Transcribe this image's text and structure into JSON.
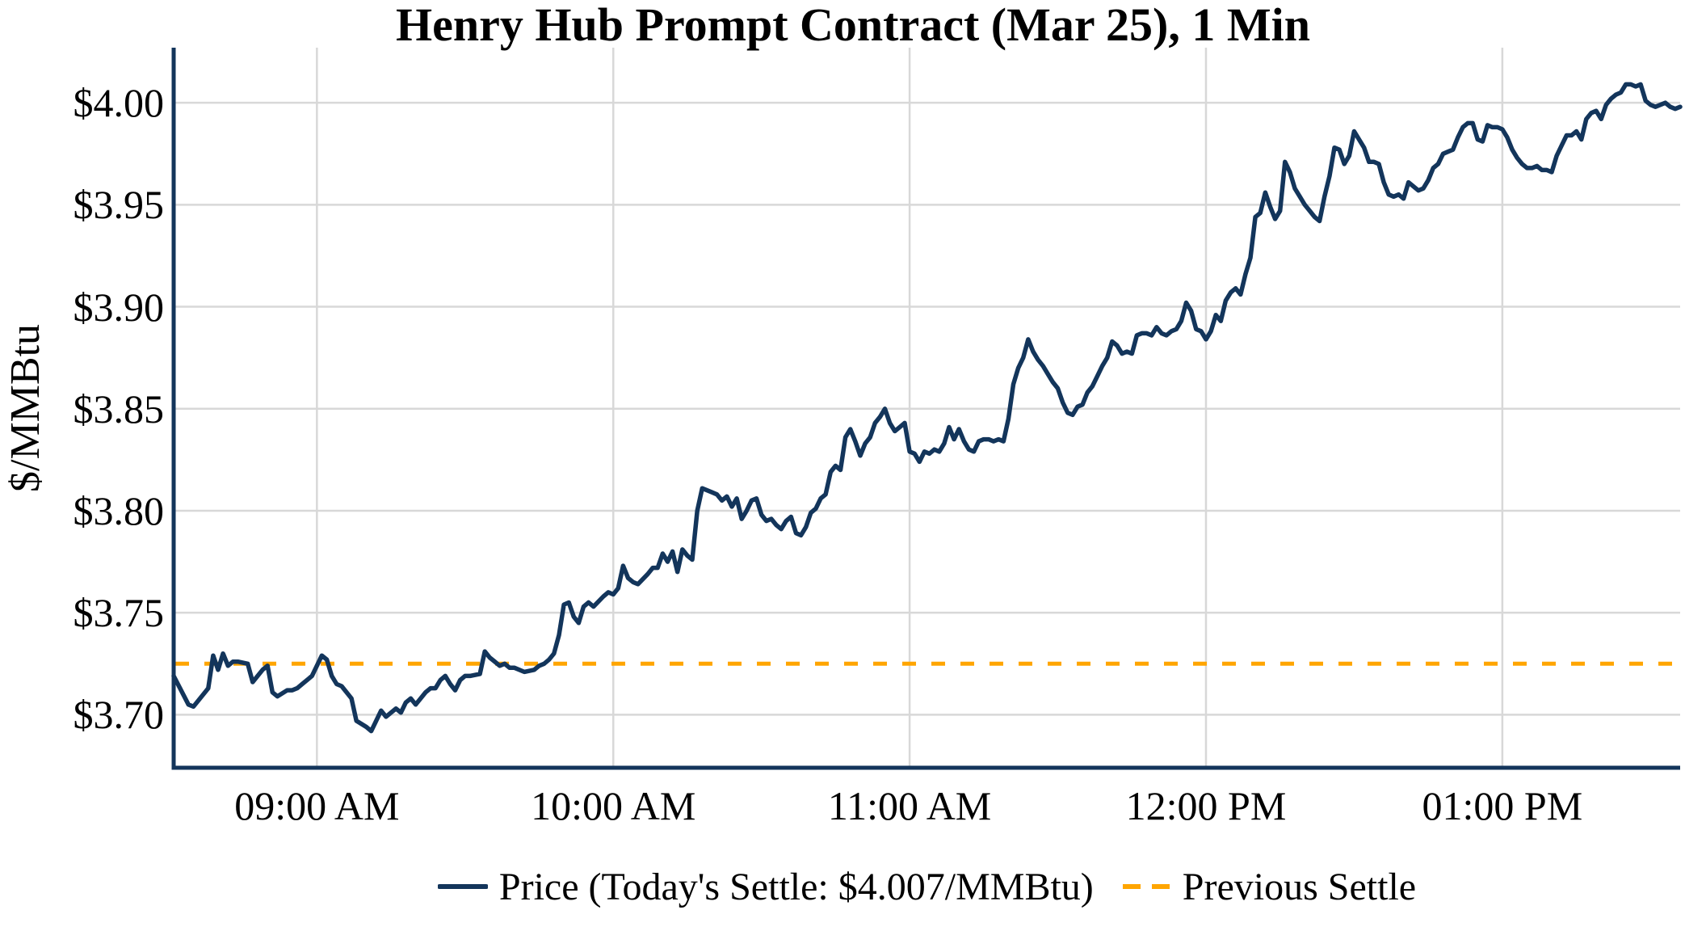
{
  "title": "Henry Hub Prompt Contract (Mar 25), 1 Min",
  "y_axis": {
    "label": "$/MMBtu",
    "ticks": [
      {
        "label": "$4.00",
        "value": 4.0
      },
      {
        "label": "$3.95",
        "value": 3.95
      },
      {
        "label": "$3.90",
        "value": 3.9
      },
      {
        "label": "$3.85",
        "value": 3.85
      },
      {
        "label": "$3.80",
        "value": 3.8
      },
      {
        "label": "$3.75",
        "value": 3.75
      },
      {
        "label": "$3.70",
        "value": 3.7
      }
    ]
  },
  "x_axis": {
    "ticks": [
      {
        "label": "09:00 AM",
        "minutes": 540
      },
      {
        "label": "10:00 AM",
        "minutes": 600
      },
      {
        "label": "11:00 AM",
        "minutes": 660
      },
      {
        "label": "12:00 PM",
        "minutes": 720
      },
      {
        "label": "01:00 PM",
        "minutes": 780
      }
    ]
  },
  "legend": {
    "price_label": "Price (Today's Settle: $4.007/MMBtu)",
    "settle_label": "Previous Settle"
  },
  "colors": {
    "price_line": "#13355B",
    "previous_settle": "#FFA500",
    "gridline": "#D8D8D8",
    "axis": "#13355B",
    "text": "#000000"
  },
  "chart_data": {
    "type": "line",
    "title": "Henry Hub Prompt Contract (Mar 25), 1 Min",
    "xlabel": "",
    "ylabel": "$/MMBtu",
    "x_unit": "minutes_since_midnight",
    "xlim": [
      511,
      816
    ],
    "ylim": [
      3.674,
      4.027
    ],
    "grid": true,
    "legend_position": "bottom",
    "today_settle": 4.007,
    "previous_settle": 3.725,
    "series": [
      {
        "name": "Price (Today's Settle: $4.007/MMBtu)",
        "type": "line",
        "style": "solid",
        "color": "#13355B",
        "points": [
          [
            511,
            3.719
          ],
          [
            514,
            3.705
          ],
          [
            515,
            3.704
          ],
          [
            518,
            3.713
          ],
          [
            519,
            3.729
          ],
          [
            520,
            3.722
          ],
          [
            521,
            3.73
          ],
          [
            522,
            3.724
          ],
          [
            523,
            3.726
          ],
          [
            524,
            3.726
          ],
          [
            526,
            3.725
          ],
          [
            527,
            3.716
          ],
          [
            529,
            3.722
          ],
          [
            530,
            3.724
          ],
          [
            531,
            3.711
          ],
          [
            532,
            3.709
          ],
          [
            534,
            3.712
          ],
          [
            535,
            3.712
          ],
          [
            536,
            3.713
          ],
          [
            537,
            3.715
          ],
          [
            538,
            3.717
          ],
          [
            539,
            3.719
          ],
          [
            541,
            3.729
          ],
          [
            542,
            3.727
          ],
          [
            543,
            3.719
          ],
          [
            544,
            3.715
          ],
          [
            545,
            3.714
          ],
          [
            547,
            3.708
          ],
          [
            548,
            3.697
          ],
          [
            550,
            3.694
          ],
          [
            551,
            3.692
          ],
          [
            552,
            3.697
          ],
          [
            553,
            3.702
          ],
          [
            554,
            3.699
          ],
          [
            556,
            3.703
          ],
          [
            557,
            3.701
          ],
          [
            558,
            3.706
          ],
          [
            559,
            3.708
          ],
          [
            560,
            3.705
          ],
          [
            562,
            3.711
          ],
          [
            563,
            3.713
          ],
          [
            564,
            3.713
          ],
          [
            565,
            3.717
          ],
          [
            566,
            3.719
          ],
          [
            567,
            3.715
          ],
          [
            568,
            3.712
          ],
          [
            569,
            3.717
          ],
          [
            570,
            3.719
          ],
          [
            571,
            3.719
          ],
          [
            573,
            3.72
          ],
          [
            574,
            3.731
          ],
          [
            575,
            3.728
          ],
          [
            576,
            3.726
          ],
          [
            577,
            3.724
          ],
          [
            578,
            3.725
          ],
          [
            579,
            3.723
          ],
          [
            580,
            3.723
          ],
          [
            582,
            3.721
          ],
          [
            584,
            3.722
          ],
          [
            585,
            3.724
          ],
          [
            586,
            3.725
          ],
          [
            587,
            3.727
          ],
          [
            588,
            3.73
          ],
          [
            589,
            3.739
          ],
          [
            590,
            3.754
          ],
          [
            591,
            3.755
          ],
          [
            592,
            3.748
          ],
          [
            593,
            3.745
          ],
          [
            594,
            3.753
          ],
          [
            595,
            3.755
          ],
          [
            596,
            3.753
          ],
          [
            598,
            3.758
          ],
          [
            599,
            3.76
          ],
          [
            600,
            3.759
          ],
          [
            601,
            3.762
          ],
          [
            602,
            3.773
          ],
          [
            603,
            3.767
          ],
          [
            604,
            3.765
          ],
          [
            605,
            3.764
          ],
          [
            607,
            3.769
          ],
          [
            608,
            3.772
          ],
          [
            609,
            3.772
          ],
          [
            610,
            3.779
          ],
          [
            611,
            3.775
          ],
          [
            612,
            3.78
          ],
          [
            613,
            3.77
          ],
          [
            614,
            3.781
          ],
          [
            615,
            3.778
          ],
          [
            616,
            3.776
          ],
          [
            617,
            3.8
          ],
          [
            618,
            3.811
          ],
          [
            619,
            3.81
          ],
          [
            620,
            3.809
          ],
          [
            621,
            3.808
          ],
          [
            622,
            3.805
          ],
          [
            623,
            3.807
          ],
          [
            624,
            3.802
          ],
          [
            625,
            3.806
          ],
          [
            626,
            3.796
          ],
          [
            627,
            3.8
          ],
          [
            628,
            3.805
          ],
          [
            629,
            3.806
          ],
          [
            630,
            3.798
          ],
          [
            631,
            3.795
          ],
          [
            632,
            3.796
          ],
          [
            633,
            3.793
          ],
          [
            634,
            3.791
          ],
          [
            635,
            3.795
          ],
          [
            636,
            3.797
          ],
          [
            637,
            3.789
          ],
          [
            638,
            3.788
          ],
          [
            639,
            3.792
          ],
          [
            640,
            3.799
          ],
          [
            641,
            3.801
          ],
          [
            642,
            3.806
          ],
          [
            643,
            3.808
          ],
          [
            644,
            3.819
          ],
          [
            645,
            3.822
          ],
          [
            646,
            3.82
          ],
          [
            647,
            3.836
          ],
          [
            648,
            3.84
          ],
          [
            649,
            3.834
          ],
          [
            650,
            3.827
          ],
          [
            651,
            3.833
          ],
          [
            652,
            3.836
          ],
          [
            653,
            3.843
          ],
          [
            654,
            3.846
          ],
          [
            655,
            3.85
          ],
          [
            656,
            3.843
          ],
          [
            657,
            3.839
          ],
          [
            658,
            3.841
          ],
          [
            659,
            3.843
          ],
          [
            660,
            3.829
          ],
          [
            661,
            3.828
          ],
          [
            662,
            3.824
          ],
          [
            663,
            3.829
          ],
          [
            664,
            3.828
          ],
          [
            665,
            3.83
          ],
          [
            666,
            3.829
          ],
          [
            667,
            3.833
          ],
          [
            668,
            3.841
          ],
          [
            669,
            3.835
          ],
          [
            670,
            3.84
          ],
          [
            671,
            3.834
          ],
          [
            672,
            3.83
          ],
          [
            673,
            3.829
          ],
          [
            674,
            3.834
          ],
          [
            675,
            3.835
          ],
          [
            676,
            3.835
          ],
          [
            677,
            3.834
          ],
          [
            678,
            3.835
          ],
          [
            679,
            3.834
          ],
          [
            680,
            3.845
          ],
          [
            681,
            3.862
          ],
          [
            682,
            3.87
          ],
          [
            683,
            3.875
          ],
          [
            684,
            3.884
          ],
          [
            685,
            3.878
          ],
          [
            686,
            3.874
          ],
          [
            687,
            3.871
          ],
          [
            688,
            3.867
          ],
          [
            689,
            3.863
          ],
          [
            690,
            3.86
          ],
          [
            691,
            3.853
          ],
          [
            692,
            3.848
          ],
          [
            693,
            3.847
          ],
          [
            694,
            3.851
          ],
          [
            695,
            3.852
          ],
          [
            696,
            3.858
          ],
          [
            697,
            3.861
          ],
          [
            698,
            3.866
          ],
          [
            699,
            3.871
          ],
          [
            700,
            3.875
          ],
          [
            701,
            3.883
          ],
          [
            702,
            3.881
          ],
          [
            703,
            3.877
          ],
          [
            704,
            3.878
          ],
          [
            705,
            3.877
          ],
          [
            706,
            3.886
          ],
          [
            707,
            3.887
          ],
          [
            708,
            3.887
          ],
          [
            709,
            3.886
          ],
          [
            710,
            3.89
          ],
          [
            711,
            3.887
          ],
          [
            712,
            3.886
          ],
          [
            713,
            3.888
          ],
          [
            714,
            3.889
          ],
          [
            715,
            3.893
          ],
          [
            716,
            3.902
          ],
          [
            717,
            3.898
          ],
          [
            718,
            3.889
          ],
          [
            719,
            3.888
          ],
          [
            720,
            3.884
          ],
          [
            721,
            3.888
          ],
          [
            722,
            3.896
          ],
          [
            723,
            3.893
          ],
          [
            724,
            3.903
          ],
          [
            725,
            3.907
          ],
          [
            726,
            3.909
          ],
          [
            727,
            3.906
          ],
          [
            728,
            3.916
          ],
          [
            729,
            3.924
          ],
          [
            730,
            3.944
          ],
          [
            731,
            3.946
          ],
          [
            732,
            3.956
          ],
          [
            733,
            3.949
          ],
          [
            734,
            3.943
          ],
          [
            735,
            3.947
          ],
          [
            736,
            3.971
          ],
          [
            737,
            3.966
          ],
          [
            738,
            3.958
          ],
          [
            739,
            3.954
          ],
          [
            740,
            3.95
          ],
          [
            741,
            3.947
          ],
          [
            742,
            3.944
          ],
          [
            743,
            3.942
          ],
          [
            744,
            3.954
          ],
          [
            745,
            3.964
          ],
          [
            746,
            3.978
          ],
          [
            747,
            3.977
          ],
          [
            748,
            3.97
          ],
          [
            749,
            3.974
          ],
          [
            750,
            3.986
          ],
          [
            751,
            3.982
          ],
          [
            752,
            3.978
          ],
          [
            753,
            3.971
          ],
          [
            754,
            3.971
          ],
          [
            755,
            3.97
          ],
          [
            756,
            3.961
          ],
          [
            757,
            3.955
          ],
          [
            758,
            3.954
          ],
          [
            759,
            3.955
          ],
          [
            760,
            3.953
          ],
          [
            761,
            3.961
          ],
          [
            762,
            3.959
          ],
          [
            763,
            3.957
          ],
          [
            764,
            3.958
          ],
          [
            765,
            3.962
          ],
          [
            766,
            3.968
          ],
          [
            767,
            3.97
          ],
          [
            768,
            3.975
          ],
          [
            769,
            3.976
          ],
          [
            770,
            3.977
          ],
          [
            771,
            3.983
          ],
          [
            772,
            3.988
          ],
          [
            773,
            3.99
          ],
          [
            774,
            3.99
          ],
          [
            775,
            3.982
          ],
          [
            776,
            3.981
          ],
          [
            777,
            3.989
          ],
          [
            778,
            3.988
          ],
          [
            779,
            3.988
          ],
          [
            780,
            3.987
          ],
          [
            781,
            3.983
          ],
          [
            782,
            3.977
          ],
          [
            783,
            3.973
          ],
          [
            784,
            3.97
          ],
          [
            785,
            3.968
          ],
          [
            786,
            3.968
          ],
          [
            787,
            3.969
          ],
          [
            788,
            3.967
          ],
          [
            789,
            3.967
          ],
          [
            790,
            3.966
          ],
          [
            791,
            3.974
          ],
          [
            792,
            3.979
          ],
          [
            793,
            3.984
          ],
          [
            794,
            3.984
          ],
          [
            795,
            3.986
          ],
          [
            796,
            3.982
          ],
          [
            797,
            3.992
          ],
          [
            798,
            3.995
          ],
          [
            799,
            3.996
          ],
          [
            800,
            3.992
          ],
          [
            801,
            3.999
          ],
          [
            802,
            4.002
          ],
          [
            803,
            4.004
          ],
          [
            804,
            4.005
          ],
          [
            805,
            4.009
          ],
          [
            806,
            4.009
          ],
          [
            807,
            4.008
          ],
          [
            808,
            4.009
          ],
          [
            809,
            4.001
          ],
          [
            810,
            3.999
          ],
          [
            811,
            3.998
          ],
          [
            812,
            3.999
          ],
          [
            813,
            4.0
          ],
          [
            814,
            3.998
          ],
          [
            815,
            3.997
          ],
          [
            816,
            3.998
          ]
        ]
      },
      {
        "name": "Previous Settle",
        "type": "hline",
        "style": "dashed",
        "color": "#FFA500",
        "value": 3.725
      }
    ]
  }
}
